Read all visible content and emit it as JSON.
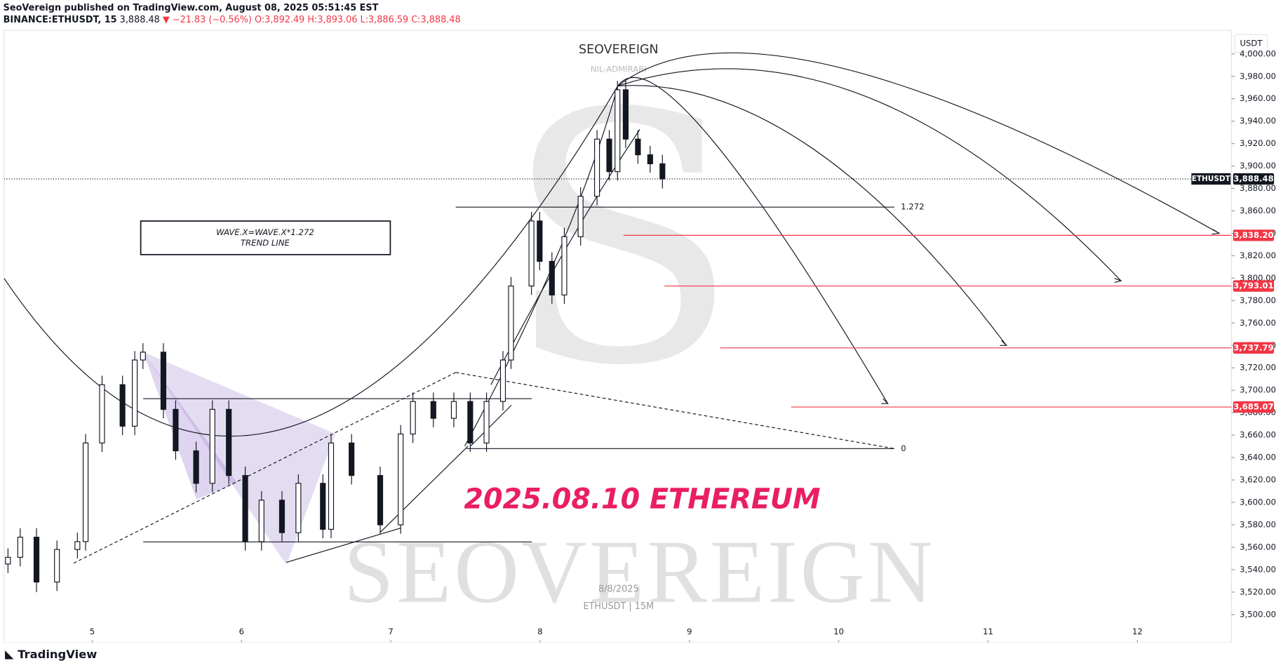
{
  "header": {
    "publisher": "SeoVereign published on TradingView.com, August 08, 2025 05:51:45 EST",
    "symbol": "BINANCE:ETHUSDT, 15",
    "price": "3,888.48",
    "change": "▼ −21.83 (−0.56%)",
    "ohlc": "O:3,892.49 H:3,893.06 L:3,886.59 C:3,888.48"
  },
  "footer": {
    "brand": "TradingView"
  },
  "chart_data": {
    "type": "candlestick",
    "color": "#131722",
    "currency": "USDT",
    "watermark": {
      "title": "SEOVEREIGN",
      "subtitle": "NIL-ADMIRARI",
      "big": "SEOVEREIGN",
      "date": "8/8/2025",
      "symbol": "ETHUSDT | 15M"
    },
    "annotations": {
      "headline": "2025.08.10 ETHEREUM",
      "box_line1": "WAVE.X=WAVE.X*1.272",
      "box_line2": "TREND LINE",
      "fib_top": "1.272",
      "fib_bottom": 0
    },
    "xlim": [
      4.41,
      12.63
    ],
    "xticks": [
      5,
      6,
      7,
      8,
      9,
      10,
      11,
      12
    ],
    "ylim": [
      3475,
      4021
    ],
    "yticks": [
      {
        "value": 3500,
        "label": "3,500.00"
      },
      {
        "value": 3520,
        "label": "3,520.00"
      },
      {
        "value": 3540,
        "label": "3,540.00"
      },
      {
        "value": 3560,
        "label": "3,560.00"
      },
      {
        "value": 3580,
        "label": "3,580.00"
      },
      {
        "value": 3600,
        "label": "3,600.00"
      },
      {
        "value": 3620,
        "label": "3,620.00"
      },
      {
        "value": 3640,
        "label": "3,640.00"
      },
      {
        "value": 3660,
        "label": "3,660.00"
      },
      {
        "value": 3680,
        "label": "3,680.00"
      },
      {
        "value": 3700,
        "label": "3,700.00"
      },
      {
        "value": 3720,
        "label": "3,720.00"
      },
      {
        "value": 3740,
        "label": "3,740.00"
      },
      {
        "value": 3760,
        "label": "3,760.00"
      },
      {
        "value": 3780,
        "label": "3,780.00"
      },
      {
        "value": 3800,
        "label": "3,800.00"
      },
      {
        "value": 3820,
        "label": "3,820.00"
      },
      {
        "value": 3840,
        "label": "3,840.00"
      },
      {
        "value": 3860,
        "label": "3,860.00"
      },
      {
        "value": 3880,
        "label": "3,880.00"
      },
      {
        "value": 3900,
        "label": "3,900.00"
      },
      {
        "value": 3920,
        "label": "3,920.00"
      },
      {
        "value": 3940,
        "label": "3,940.00"
      },
      {
        "value": 3960,
        "label": "3,960.00"
      },
      {
        "value": 3980,
        "label": "3,980.00"
      },
      {
        "value": 4000,
        "label": "4,000.00"
      }
    ],
    "last_price": {
      "name": "ETHUSDT",
      "value": 3888.48,
      "label": "3,888.48"
    },
    "levels": [
      {
        "value": 3838.2,
        "label": "3,838.20"
      },
      {
        "value": 3793.01,
        "label": "3,793.01"
      },
      {
        "value": 3737.79,
        "label": "3,737.79"
      },
      {
        "value": 3685.07,
        "label": "3,685.07"
      }
    ],
    "level_color": "#f23645",
    "x": [
      4.436,
      4.518,
      4.627,
      4.764,
      4.901,
      4.956,
      5.066,
      5.203,
      5.285,
      5.34,
      5.477,
      5.559,
      5.696,
      5.805,
      5.915,
      6.025,
      6.134,
      6.271,
      6.381,
      6.545,
      6.6,
      6.737,
      6.929,
      7.066,
      7.148,
      7.285,
      7.422,
      7.532,
      7.641,
      7.751,
      7.805,
      7.942,
      7.997,
      8.079,
      8.162,
      8.271,
      8.381,
      8.463,
      8.518,
      8.573,
      8.655,
      8.737,
      8.819
    ],
    "open": [
      3545,
      3551,
      3569,
      3529,
      3558,
      3565,
      3653,
      3705,
      3668,
      3727,
      3734,
      3683,
      3646,
      3617,
      3683,
      3624,
      3565,
      3602,
      3573,
      3617,
      3576,
      3653,
      3624,
      3580,
      3661,
      3690,
      3675,
      3690,
      3653,
      3690,
      3727,
      3793,
      3851,
      3815,
      3785,
      3837,
      3873,
      3924,
      3895,
      3968,
      3924,
      3910,
      3902
    ],
    "high": [
      3559,
      3577,
      3577,
      3566,
      3573,
      3661,
      3713,
      3713,
      3735,
      3742,
      3742,
      3691,
      3654,
      3691,
      3691,
      3632,
      3610,
      3610,
      3625,
      3625,
      3661,
      3661,
      3632,
      3669,
      3698,
      3698,
      3698,
      3698,
      3698,
      3735,
      3801,
      3859,
      3859,
      3823,
      3845,
      3881,
      3932,
      3932,
      3976,
      3976,
      3932,
      3918,
      3910
    ],
    "low": [
      3537,
      3543,
      3520,
      3521,
      3550,
      3557,
      3645,
      3660,
      3660,
      3719,
      3675,
      3638,
      3609,
      3609,
      3616,
      3557,
      3557,
      3565,
      3565,
      3568,
      3568,
      3616,
      3572,
      3572,
      3653,
      3667,
      3667,
      3645,
      3645,
      3682,
      3719,
      3785,
      3807,
      3777,
      3777,
      3829,
      3865,
      3887,
      3887,
      3916,
      3902,
      3894,
      3880
    ],
    "close": [
      3551,
      3569,
      3529,
      3558,
      3565,
      3653,
      3705,
      3668,
      3727,
      3734,
      3683,
      3646,
      3617,
      3683,
      3624,
      3565,
      3602,
      3573,
      3617,
      3576,
      3653,
      3624,
      3580,
      3661,
      3690,
      3675,
      3690,
      3653,
      3690,
      3727,
      3793,
      3851,
      3815,
      3785,
      3837,
      3873,
      3924,
      3895,
      3968,
      3924,
      3910,
      3902,
      3888.48
    ]
  }
}
